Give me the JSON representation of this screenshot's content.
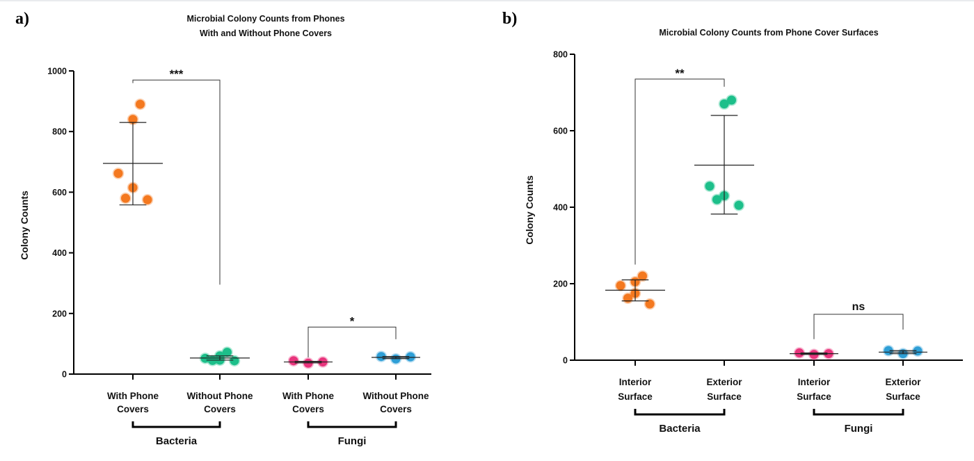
{
  "chart_data": [
    {
      "panel_label": "a)",
      "type": "scatter",
      "title_lines": [
        "Microbial Colony Counts from Phones",
        "With and Without Phone Covers"
      ],
      "ylabel": "Colony Counts",
      "ylim": [
        0,
        1000
      ],
      "yticks": [
        0,
        200,
        400,
        600,
        800,
        1000
      ],
      "grid": false,
      "categories": [
        {
          "label_lines": [
            "With Phone",
            "Covers"
          ],
          "color": "#f47920",
          "points": [
            890,
            840,
            662,
            615,
            580,
            575
          ],
          "mean": 695,
          "sd_upper": 830,
          "sd_lower": 558
        },
        {
          "label_lines": [
            "Without Phone",
            "Covers"
          ],
          "color": "#1dbf8a",
          "points": [
            72,
            60,
            52,
            46,
            45,
            44
          ],
          "mean": 53,
          "sd_upper": 60,
          "sd_lower": 46
        },
        {
          "label_lines": [
            "With Phone",
            "Covers"
          ],
          "color": "#e8347c",
          "points": [
            44,
            40,
            36
          ],
          "mean": 40,
          "sd_upper": 42,
          "sd_lower": 37
        },
        {
          "label_lines": [
            "Without Phone",
            "Covers"
          ],
          "color": "#2e9fd6",
          "points": [
            58,
            57,
            50
          ],
          "mean": 55,
          "sd_upper": 58,
          "sd_lower": 51
        }
      ],
      "groups": [
        {
          "label": "Bacteria",
          "categories": [
            0,
            1
          ]
        },
        {
          "label": "Fungi",
          "categories": [
            2,
            3
          ]
        }
      ],
      "significance": [
        {
          "pair": [
            0,
            1
          ],
          "label": "***",
          "bracket_top": 970,
          "left_leg_to": 960,
          "right_leg_to": 295
        },
        {
          "pair": [
            2,
            3
          ],
          "label": "*",
          "bracket_top": 155,
          "left_leg_to": 55,
          "right_leg_to": 115
        }
      ]
    },
    {
      "panel_label": "b)",
      "type": "scatter",
      "title_lines": [
        "Microbial Colony Counts from Phone Cover Surfaces"
      ],
      "ylabel": "Colony Counts",
      "ylim": [
        0,
        800
      ],
      "yticks": [
        0,
        200,
        400,
        600,
        800
      ],
      "grid": false,
      "categories": [
        {
          "label_lines": [
            "Interior",
            "Surface"
          ],
          "color": "#f47920",
          "points": [
            220,
            205,
            195,
            175,
            162,
            147
          ],
          "mean": 183,
          "sd_upper": 210,
          "sd_lower": 155
        },
        {
          "label_lines": [
            "Exterior",
            "Surface"
          ],
          "color": "#1dbf8a",
          "points": [
            680,
            670,
            455,
            430,
            420,
            405
          ],
          "mean": 510,
          "sd_upper": 640,
          "sd_lower": 382
        },
        {
          "label_lines": [
            "Interior",
            "Surface"
          ],
          "color": "#e8347c",
          "points": [
            19,
            17,
            15
          ],
          "mean": 17,
          "sd_upper": 19,
          "sd_lower": 15
        },
        {
          "label_lines": [
            "Exterior",
            "Surface"
          ],
          "color": "#2e9fd6",
          "points": [
            25,
            24,
            17
          ],
          "mean": 21,
          "sd_upper": 25,
          "sd_lower": 17
        }
      ],
      "groups": [
        {
          "label": "Bacteria",
          "categories": [
            0,
            1
          ]
        },
        {
          "label": "Fungi",
          "categories": [
            2,
            3
          ]
        }
      ],
      "significance": [
        {
          "pair": [
            0,
            1
          ],
          "label": "**",
          "bracket_top": 735,
          "left_leg_to": 250,
          "right_leg_to": 715
        },
        {
          "pair": [
            2,
            3
          ],
          "label": "ns",
          "bracket_top": 120,
          "left_leg_to": 55,
          "right_leg_to": 80
        }
      ]
    }
  ]
}
